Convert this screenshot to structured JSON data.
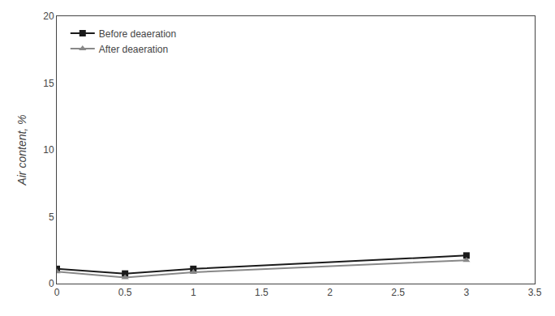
{
  "chart_data": {
    "type": "line",
    "y_label": "Air content, %",
    "x": [
      0,
      0.5,
      1,
      3
    ],
    "series": [
      {
        "name": "Before deaeration",
        "color": "#1a1a1a",
        "marker": "square",
        "values": [
          1.1,
          0.75,
          1.1,
          2.1
        ]
      },
      {
        "name": "After deaeration",
        "color": "#888888",
        "marker": "triangle-up",
        "values": [
          0.9,
          0.45,
          0.85,
          1.75
        ]
      }
    ],
    "xlim": [
      0,
      3.5
    ],
    "xticks": [
      0,
      0.5,
      1,
      1.5,
      2,
      2.5,
      3,
      3.5
    ],
    "ylim": [
      0,
      20
    ],
    "yticks": [
      0,
      5,
      10,
      15,
      20
    ],
    "grid": false,
    "legend": "upper left"
  }
}
